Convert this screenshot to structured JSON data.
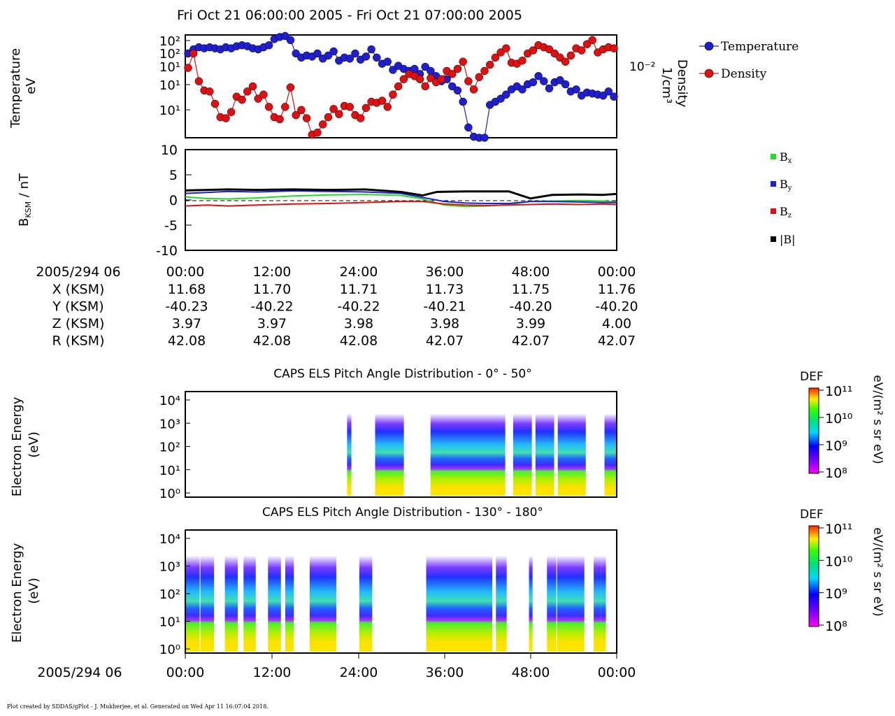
{
  "title": "Fri Oct 21 06:00:00 2005 - Fri Oct 21 07:00:00 2005",
  "footer": "Plot created by SDDAS/gPlot - J. Mukherjee, et al.  Generated on Wed Apr 11 16:07:04 2018.",
  "colors": {
    "temperature": "#1f1fd0",
    "density": "#e01010",
    "bx": "#22dd22",
    "by": "#1f1fd0",
    "bz": "#e01010",
    "bmag": "#000000"
  },
  "x_ticks": [
    "00:00",
    "12:00",
    "24:00",
    "36:00",
    "48:00",
    "00:00"
  ],
  "ephemeris": {
    "time_label": "2005/294 06",
    "rows": [
      {
        "label": "X (KSM)",
        "values": [
          "11.68",
          "11.70",
          "11.71",
          "11.73",
          "11.75",
          "11.76"
        ]
      },
      {
        "label": "Y (KSM)",
        "values": [
          "-40.23",
          "-40.22",
          "-40.22",
          "-40.21",
          "-40.20",
          "-40.20"
        ]
      },
      {
        "label": "Z (KSM)",
        "values": [
          "3.97",
          "3.97",
          "3.98",
          "3.98",
          "3.99",
          "4.00"
        ]
      },
      {
        "label": "R (KSM)",
        "values": [
          "42.08",
          "42.08",
          "42.08",
          "42.07",
          "42.07",
          "42.07"
        ]
      }
    ]
  },
  "bottom_time_label": "2005/294 06",
  "chart_data": [
    {
      "type": "line",
      "ylabel": "Temperature eV",
      "y2label": "Density 1/cm³",
      "y_ticks": [
        "10²",
        "10²",
        "10¹",
        "10¹",
        "10¹"
      ],
      "y2_ticks": [
        "10⁻²"
      ],
      "legend": [
        "Temperature",
        "Density"
      ],
      "legend_position": "right",
      "series": [
        {
          "name": "Temperature",
          "scale": "relative",
          "values": [
            0.82,
            0.86,
            0.88,
            0.87,
            0.88,
            0.87,
            0.86,
            0.88,
            0.87,
            0.89,
            0.9,
            0.89,
            0.87,
            0.86,
            0.88,
            0.9,
            0.96,
            0.98,
            0.99,
            0.95,
            0.82,
            0.78,
            0.8,
            0.79,
            0.82,
            0.77,
            0.8,
            0.84,
            0.75,
            0.78,
            0.77,
            0.82,
            0.76,
            0.79,
            0.86,
            0.78,
            0.72,
            0.74,
            0.66,
            0.7,
            0.67,
            0.65,
            0.67,
            0.62,
            0.69,
            0.65,
            0.6,
            0.55,
            0.57,
            0.5,
            0.46,
            0.35,
            0.1,
            0.01,
            0.0,
            0.0,
            0.32,
            0.35,
            0.38,
            0.42,
            0.47,
            0.5,
            0.47,
            0.52,
            0.54,
            0.6,
            0.55,
            0.48,
            0.54,
            0.56,
            0.52,
            0.45,
            0.47,
            0.41,
            0.44,
            0.43,
            0.42,
            0.41,
            0.45,
            0.4
          ]
        },
        {
          "name": "Density",
          "scale": "relative",
          "values": [
            0.68,
            0.82,
            0.55,
            0.46,
            0.45,
            0.33,
            0.2,
            0.19,
            0.25,
            0.4,
            0.37,
            0.45,
            0.5,
            0.38,
            0.42,
            0.3,
            0.2,
            0.18,
            0.3,
            0.49,
            0.22,
            0.27,
            0.19,
            0.03,
            0.05,
            0.13,
            0.2,
            0.28,
            0.23,
            0.31,
            0.3,
            0.22,
            0.19,
            0.29,
            0.35,
            0.34,
            0.36,
            0.3,
            0.42,
            0.5,
            0.57,
            0.62,
            0.6,
            0.57,
            0.5,
            0.58,
            0.54,
            0.57,
            0.65,
            0.62,
            0.67,
            0.74,
            0.55,
            0.47,
            0.59,
            0.65,
            0.71,
            0.78,
            0.83,
            0.87,
            0.73,
            0.72,
            0.75,
            0.82,
            0.85,
            0.9,
            0.88,
            0.86,
            0.82,
            0.78,
            0.74,
            0.8,
            0.87,
            0.85,
            0.91,
            0.95,
            0.83,
            0.86,
            0.88,
            0.87
          ]
        }
      ]
    },
    {
      "type": "line",
      "ylabel": "B_KSM / nT",
      "ylim": [
        -10,
        10
      ],
      "y_ticks": [
        "10",
        "5",
        "0",
        "-5",
        "-10"
      ],
      "legend": [
        "Bx",
        "By",
        "Bz",
        "|B|"
      ],
      "legend_position": "right",
      "series": [
        {
          "name": "Bx",
          "x": [
            0,
            3,
            6,
            10,
            15,
            20,
            25,
            30,
            33,
            36,
            39,
            42,
            45,
            48,
            51,
            55,
            58,
            60
          ],
          "values": [
            0.6,
            0.3,
            0.2,
            0.4,
            0.8,
            1.0,
            1.1,
            0.9,
            0.2,
            -1.0,
            -1.3,
            -1.2,
            -0.9,
            -0.3,
            -0.2,
            -0.1,
            -0.2,
            -0.4
          ]
        },
        {
          "name": "By",
          "x": [
            0,
            3,
            6,
            10,
            15,
            20,
            25,
            30,
            33,
            36,
            39,
            42,
            45,
            48,
            51,
            55,
            58,
            60
          ],
          "values": [
            1.3,
            1.5,
            1.7,
            1.6,
            1.8,
            1.7,
            1.6,
            1.3,
            0.5,
            -0.3,
            -0.6,
            -0.7,
            -0.7,
            -0.3,
            -0.3,
            -0.4,
            -0.5,
            -0.5
          ]
        },
        {
          "name": "Bz",
          "x": [
            0,
            3,
            6,
            10,
            15,
            20,
            25,
            30,
            33,
            36,
            39,
            42,
            45,
            48,
            51,
            55,
            58,
            60
          ],
          "values": [
            -1.2,
            -1.0,
            -1.2,
            -1.0,
            -0.8,
            -0.7,
            -0.5,
            -0.3,
            -0.3,
            -0.8,
            -1.0,
            -1.1,
            -1.0,
            -0.9,
            -0.8,
            -0.9,
            -0.8,
            -0.9
          ]
        },
        {
          "name": "|B|",
          "x": [
            0,
            3,
            6,
            10,
            15,
            20,
            25,
            30,
            33,
            35,
            39,
            42,
            45,
            48,
            51,
            55,
            58,
            60
          ],
          "values": [
            1.9,
            2.0,
            2.1,
            2.0,
            2.1,
            2.0,
            2.1,
            1.6,
            0.9,
            1.6,
            1.7,
            1.7,
            1.7,
            0.3,
            1.0,
            1.1,
            1.0,
            1.2
          ]
        }
      ]
    },
    {
      "type": "heatmap",
      "title": "CAPS ELS Pitch Angle Distribution - 0° - 50°",
      "ylabel": "Electron Energy (eV)",
      "y_ticks": [
        "10⁴",
        "10³",
        "10²",
        "10¹",
        "10⁰"
      ],
      "colorbar_label": "DEF",
      "colorbar_units": "eV/(m² s sr eV)",
      "colorbar_ticks": [
        "10¹¹",
        "10¹⁰",
        "10⁹",
        "10⁸"
      ],
      "data_blocks_min": [
        [
          22.5,
          23.1
        ],
        [
          26.4,
          30.4
        ],
        [
          34.1,
          44.5
        ],
        [
          45.6,
          48.2
        ],
        [
          48.7,
          51.3
        ],
        [
          51.8,
          55.7
        ],
        [
          58.3,
          60
        ]
      ]
    },
    {
      "type": "heatmap",
      "title": "CAPS ELS Pitch Angle Distribution - 130° - 180°",
      "ylabel": "Electron Energy (eV)",
      "y_ticks": [
        "10⁴",
        "10³",
        "10²",
        "10¹",
        "10⁰"
      ],
      "colorbar_label": "DEF",
      "colorbar_units": "eV/(m² s sr eV)",
      "colorbar_ticks": [
        "10¹¹",
        "10¹⁰",
        "10⁹",
        "10⁸"
      ],
      "data_blocks_min": [
        [
          0,
          2
        ],
        [
          2.1,
          4
        ],
        [
          5.5,
          7.3
        ],
        [
          8.1,
          9.8
        ],
        [
          11.5,
          13.3
        ],
        [
          13.9,
          15.1
        ],
        [
          17.3,
          21
        ],
        [
          24.2,
          26
        ],
        [
          33.5,
          42.7
        ],
        [
          43.2,
          44.7
        ],
        [
          47.8,
          48.3
        ],
        [
          50.3,
          51.6
        ],
        [
          51.7,
          55.5
        ],
        [
          56.8,
          57.8
        ],
        [
          57.8,
          58.5
        ]
      ]
    }
  ]
}
